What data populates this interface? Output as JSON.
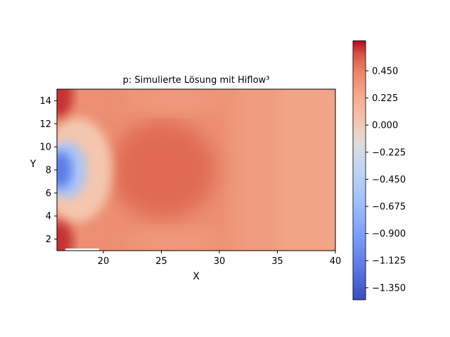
{
  "chart_data": {
    "type": "heatmap",
    "title": "p: Simulierte Lösung mit Hiflow³",
    "xlabel": "X",
    "ylabel": "Y",
    "xlim": [
      16,
      40
    ],
    "ylim": [
      1,
      15
    ],
    "x_ticks": [
      20,
      25,
      30,
      35,
      40
    ],
    "y_ticks": [
      2,
      4,
      6,
      8,
      10,
      12,
      14
    ],
    "colormap": "coolwarm",
    "colorbar": {
      "range": [
        -1.45,
        0.7
      ],
      "ticks": [
        "0.450",
        "0.225",
        "0.000",
        "−0.225",
        "−0.450",
        "−0.675",
        "−0.900",
        "−1.125",
        "−1.350"
      ],
      "tick_values": [
        0.45,
        0.225,
        0.0,
        -0.225,
        -0.45,
        -0.675,
        -0.9,
        -1.125,
        -1.35
      ]
    },
    "field_description_values": {
      "inlet_min": -1.35,
      "corner_max": 0.68,
      "center_blob_value": 0.38,
      "right_side_value": 0.15,
      "background_value": 0.28
    }
  }
}
